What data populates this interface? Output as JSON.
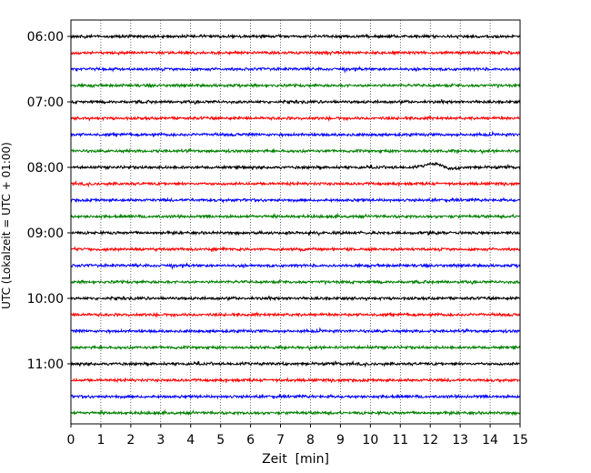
{
  "chart_data": {
    "type": "line",
    "title": "",
    "xlabel": "Zeit  [min]",
    "ylabel": "UTC (Lokalzeit = UTC + 01:00)",
    "xlim": [
      0,
      15
    ],
    "x_ticks": [
      "0",
      "1",
      "2",
      "3",
      "4",
      "5",
      "6",
      "7",
      "8",
      "9",
      "10",
      "11",
      "12",
      "13",
      "14",
      "15"
    ],
    "y_tick_labels": [
      "06:00",
      "07:00",
      "08:00",
      "09:00",
      "10:00",
      "11:00"
    ],
    "grid": "vertical dotted at each minute",
    "colors": {
      "black": "#000000",
      "red": "#ff0000",
      "blue": "#0000ff",
      "green": "#008000"
    },
    "traces": [
      {
        "start": "06:00",
        "color": "black"
      },
      {
        "start": "06:15",
        "color": "red"
      },
      {
        "start": "06:30",
        "color": "blue"
      },
      {
        "start": "06:45",
        "color": "green"
      },
      {
        "start": "07:00",
        "color": "black"
      },
      {
        "start": "07:15",
        "color": "red"
      },
      {
        "start": "07:30",
        "color": "blue"
      },
      {
        "start": "07:45",
        "color": "green"
      },
      {
        "start": "08:00",
        "color": "black",
        "event": {
          "x_start": 11.2,
          "x_end": 13.4,
          "peak_x": 12.1
        }
      },
      {
        "start": "08:15",
        "color": "red"
      },
      {
        "start": "08:30",
        "color": "blue"
      },
      {
        "start": "08:45",
        "color": "green"
      },
      {
        "start": "09:00",
        "color": "black"
      },
      {
        "start": "09:15",
        "color": "red"
      },
      {
        "start": "09:30",
        "color": "blue"
      },
      {
        "start": "09:45",
        "color": "green"
      },
      {
        "start": "10:00",
        "color": "black"
      },
      {
        "start": "10:15",
        "color": "red"
      },
      {
        "start": "10:30",
        "color": "blue"
      },
      {
        "start": "10:45",
        "color": "green"
      },
      {
        "start": "11:00",
        "color": "black"
      },
      {
        "start": "11:15",
        "color": "red"
      },
      {
        "start": "11:30",
        "color": "blue"
      },
      {
        "start": "11:45",
        "color": "green"
      }
    ]
  }
}
